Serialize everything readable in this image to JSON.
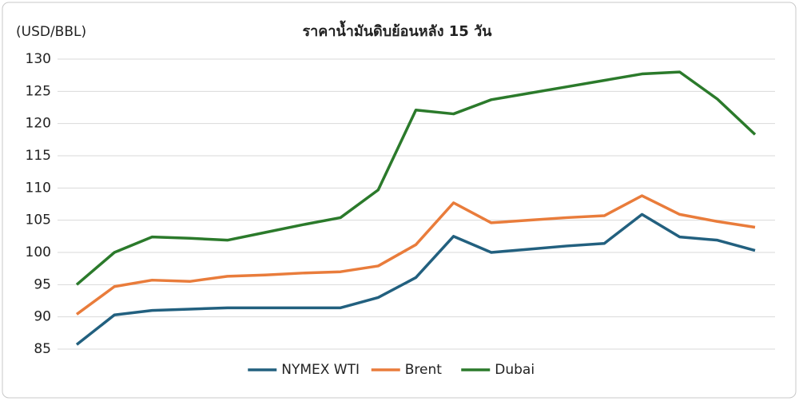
{
  "chart_data": {
    "type": "line",
    "title": "ราคาน้ำมันดิบย้อนหลัง 15 วัน",
    "y_label": "(USD/BBL)",
    "categories": [
      null,
      null,
      null,
      null,
      null,
      null,
      null,
      null,
      null,
      null,
      null,
      null,
      null,
      null,
      null,
      null,
      null,
      null,
      null
    ],
    "series": [
      {
        "name": "NYMEX WTI",
        "color": "#22607f",
        "values": [
          85.7,
          90.3,
          91.0,
          91.2,
          91.4,
          91.4,
          91.4,
          91.4,
          93.0,
          96.1,
          102.5,
          100.0,
          100.5,
          101.0,
          101.4,
          105.9,
          102.4,
          101.9,
          100.3
        ]
      },
      {
        "name": "Brent",
        "color": "#e97c3b",
        "values": [
          90.4,
          94.7,
          95.7,
          95.5,
          96.3,
          96.5,
          96.8,
          97.0,
          97.9,
          101.2,
          107.7,
          104.6,
          105.0,
          105.4,
          105.7,
          108.8,
          105.9,
          104.8,
          103.9
        ]
      },
      {
        "name": "Dubai",
        "color": "#2b7a2b",
        "values": [
          95.0,
          100.0,
          102.4,
          102.2,
          101.9,
          103.1,
          104.3,
          105.4,
          109.7,
          122.1,
          121.5,
          123.7,
          124.7,
          125.7,
          126.7,
          127.7,
          128.0,
          123.8,
          118.3
        ]
      }
    ],
    "ylim": [
      85,
      130
    ],
    "yticks": [
      85,
      90,
      95,
      100,
      105,
      110,
      115,
      120,
      125,
      130
    ],
    "grid": true,
    "legend": "bottom"
  }
}
